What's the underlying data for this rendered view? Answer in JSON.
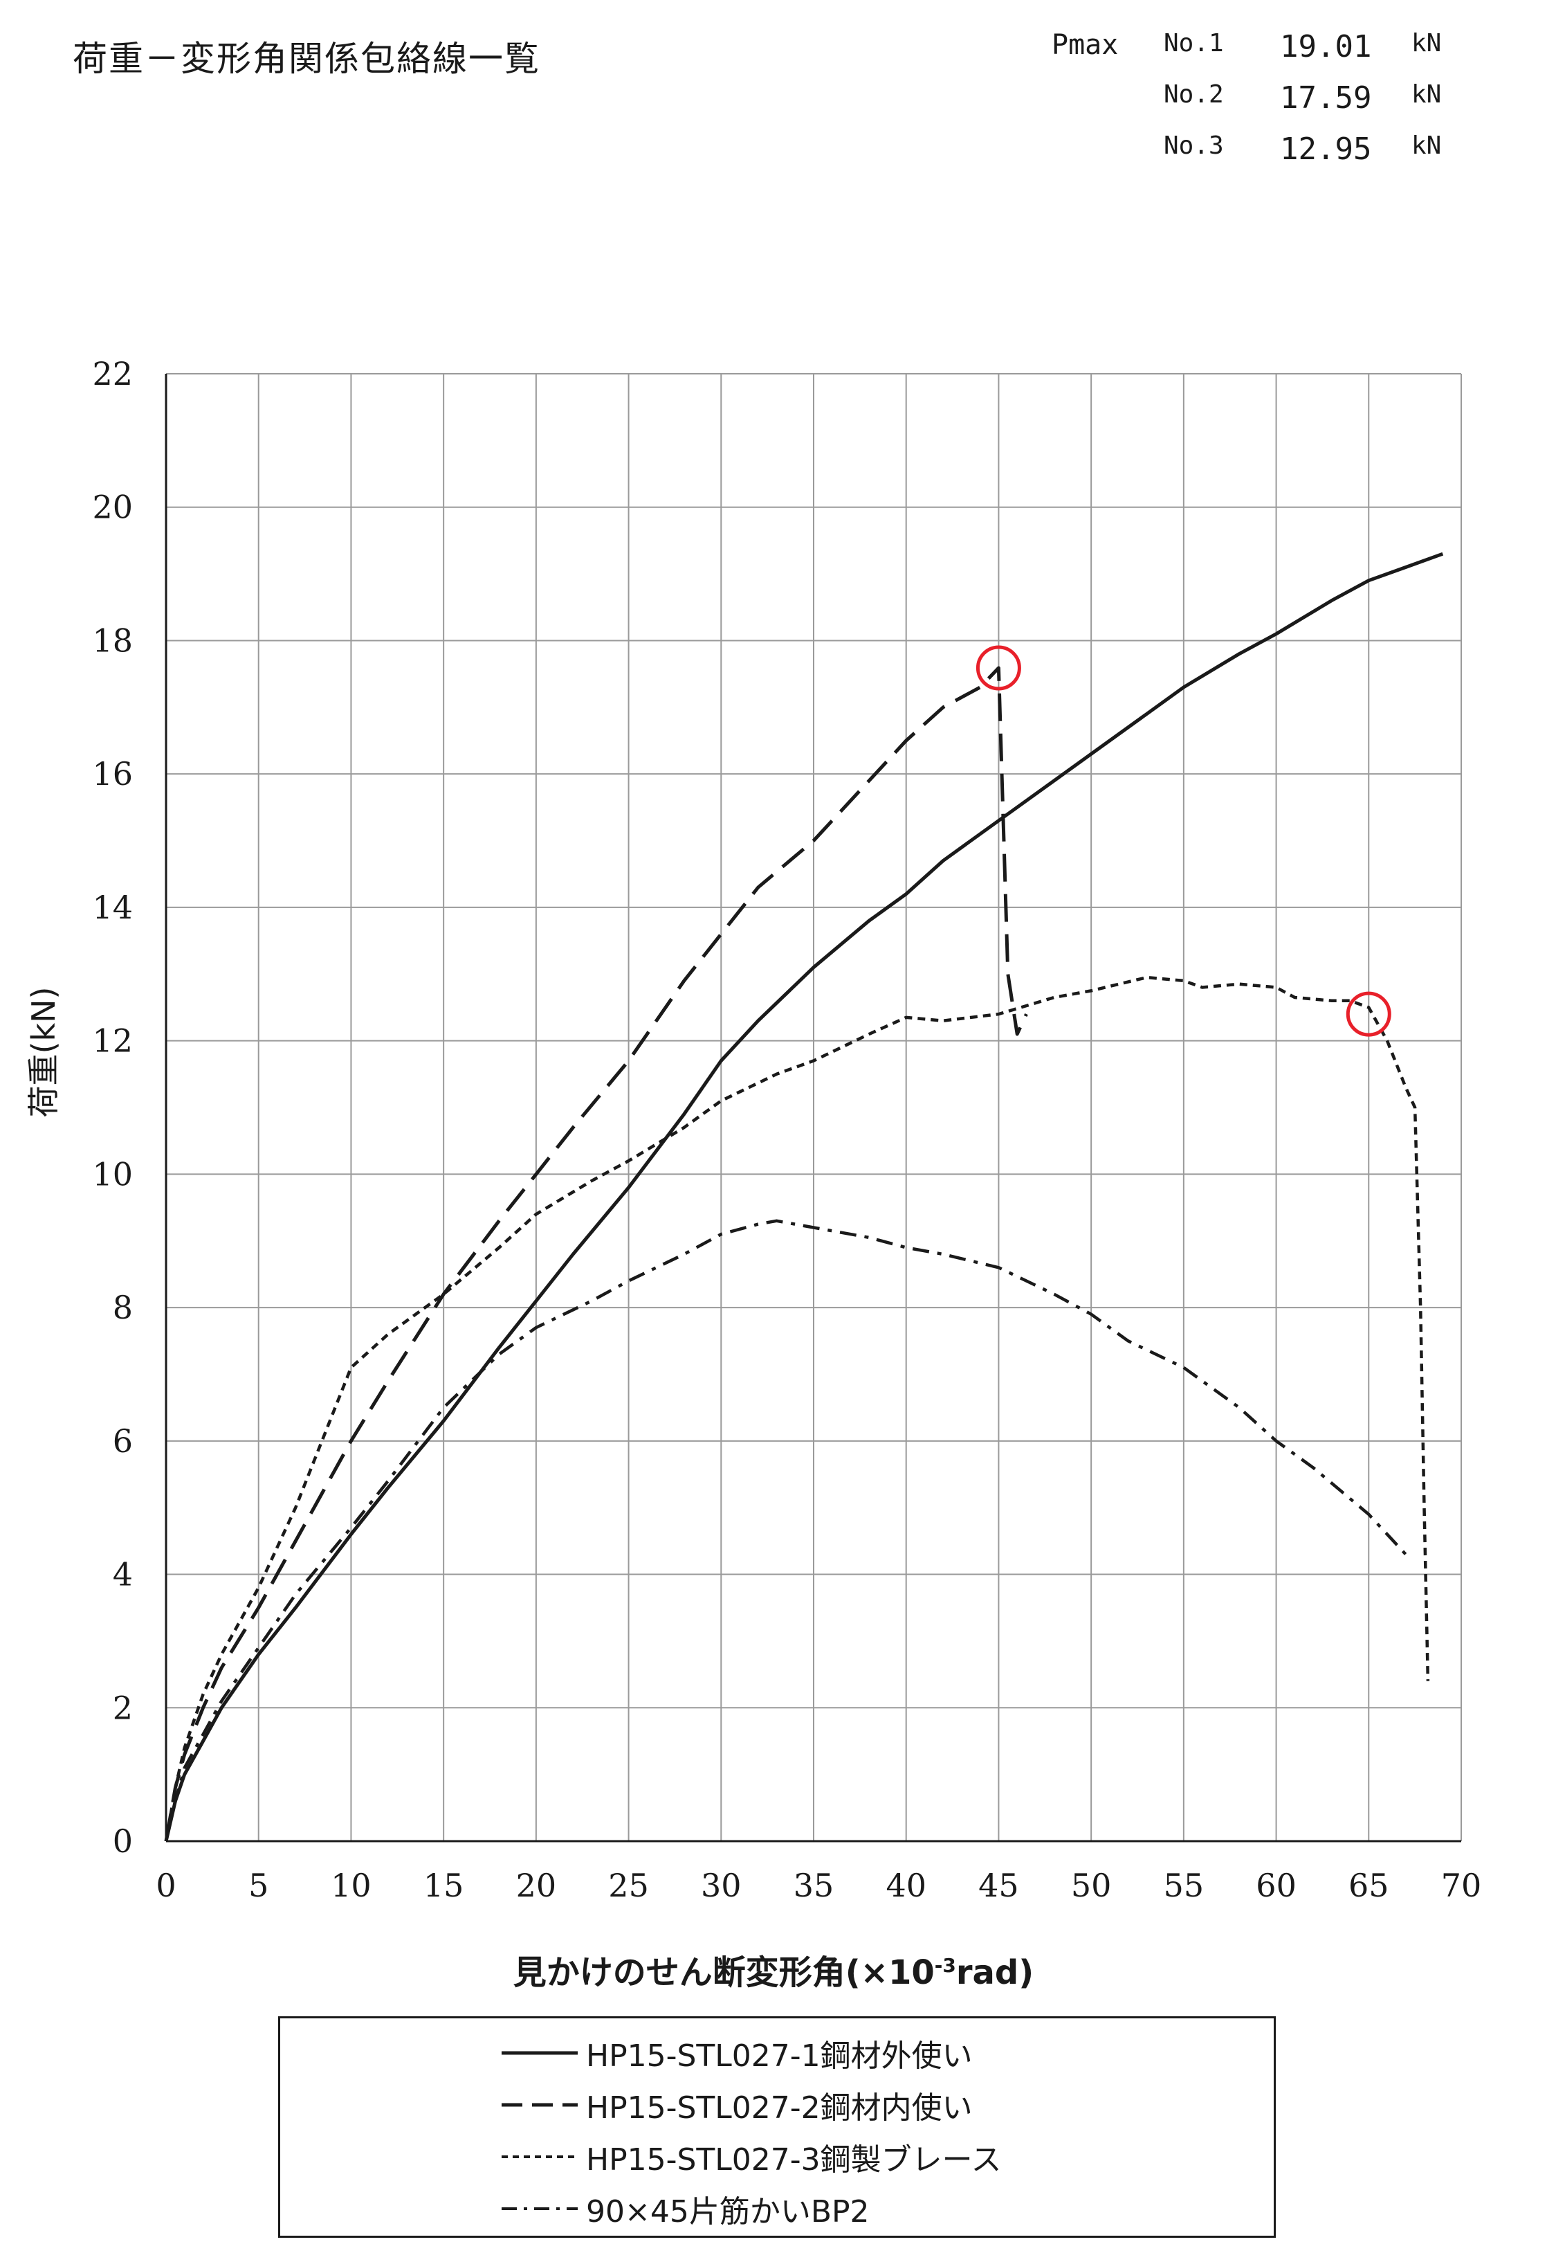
{
  "page": {
    "title": "荷重－変形角関係包絡線一覧"
  },
  "pmax": {
    "label": "Pmax",
    "rows": [
      {
        "no": "No.1",
        "value": "19.01",
        "unit": "kN"
      },
      {
        "no": "No.2",
        "value": "17.59",
        "unit": "kN"
      },
      {
        "no": "No.3",
        "value": "12.95",
        "unit": "kN"
      }
    ]
  },
  "chart_data": {
    "type": "line",
    "xlabel_main": "見かけのせん断変形角(×10",
    "xlabel_sup": "-3",
    "xlabel_tail": "rad)",
    "ylabel": "荷重(kN)",
    "xlim": [
      0,
      70
    ],
    "ylim": [
      0,
      22
    ],
    "xticks": [
      "0",
      "5",
      "10",
      "15",
      "20",
      "25",
      "30",
      "35",
      "40",
      "45",
      "50",
      "55",
      "60",
      "65",
      "70"
    ],
    "yticks": [
      "0",
      "2",
      "4",
      "6",
      "8",
      "10",
      "12",
      "14",
      "16",
      "18",
      "20",
      "22"
    ],
    "grid": true,
    "legend_position": "bottom",
    "series": [
      {
        "name": "HP15-STL027-1鋼材外使い",
        "style": "solid",
        "color": "#1a1a1a",
        "points": [
          [
            0,
            0
          ],
          [
            0.5,
            0.6
          ],
          [
            1,
            1.0
          ],
          [
            2,
            1.5
          ],
          [
            3,
            2.0
          ],
          [
            5,
            2.8
          ],
          [
            7,
            3.5
          ],
          [
            10,
            4.6
          ],
          [
            12,
            5.3
          ],
          [
            15,
            6.3
          ],
          [
            18,
            7.4
          ],
          [
            20,
            8.1
          ],
          [
            22,
            8.8
          ],
          [
            25,
            9.8
          ],
          [
            28,
            10.9
          ],
          [
            30,
            11.7
          ],
          [
            32,
            12.3
          ],
          [
            35,
            13.1
          ],
          [
            38,
            13.8
          ],
          [
            40,
            14.2
          ],
          [
            42,
            14.7
          ],
          [
            45,
            15.3
          ],
          [
            48,
            15.9
          ],
          [
            50,
            16.3
          ],
          [
            53,
            16.9
          ],
          [
            55,
            17.3
          ],
          [
            58,
            17.8
          ],
          [
            60,
            18.1
          ],
          [
            63,
            18.6
          ],
          [
            65,
            18.9
          ],
          [
            67,
            19.1
          ],
          [
            69,
            19.3
          ]
        ]
      },
      {
        "name": "HP15-STL027-2鋼材内使い",
        "style": "dashed",
        "color": "#1a1a1a",
        "points": [
          [
            0,
            0
          ],
          [
            0.5,
            0.8
          ],
          [
            1,
            1.3
          ],
          [
            2,
            2.0
          ],
          [
            3,
            2.6
          ],
          [
            5,
            3.5
          ],
          [
            7,
            4.5
          ],
          [
            10,
            6.0
          ],
          [
            12,
            6.9
          ],
          [
            15,
            8.2
          ],
          [
            18,
            9.3
          ],
          [
            20,
            10.0
          ],
          [
            22,
            10.7
          ],
          [
            25,
            11.7
          ],
          [
            28,
            12.9
          ],
          [
            30,
            13.6
          ],
          [
            32,
            14.3
          ],
          [
            35,
            15.0
          ],
          [
            38,
            15.9
          ],
          [
            40,
            16.5
          ],
          [
            42,
            17.0
          ],
          [
            44,
            17.3
          ],
          [
            45,
            17.59
          ],
          [
            45.5,
            13.0
          ],
          [
            46,
            12.1
          ],
          [
            46.5,
            12.4
          ]
        ]
      },
      {
        "name": "HP15-STL027-3鋼製ブレース",
        "style": "dotted",
        "color": "#1a1a1a",
        "points": [
          [
            0,
            0
          ],
          [
            0.5,
            0.8
          ],
          [
            1,
            1.4
          ],
          [
            2,
            2.2
          ],
          [
            3,
            2.8
          ],
          [
            5,
            3.8
          ],
          [
            7,
            5.0
          ],
          [
            8,
            5.7
          ],
          [
            10,
            7.1
          ],
          [
            12,
            7.6
          ],
          [
            15,
            8.2
          ],
          [
            18,
            8.9
          ],
          [
            20,
            9.4
          ],
          [
            23,
            9.9
          ],
          [
            25,
            10.2
          ],
          [
            28,
            10.7
          ],
          [
            30,
            11.1
          ],
          [
            33,
            11.5
          ],
          [
            35,
            11.7
          ],
          [
            38,
            12.1
          ],
          [
            40,
            12.35
          ],
          [
            42,
            12.3
          ],
          [
            45,
            12.4
          ],
          [
            48,
            12.65
          ],
          [
            50,
            12.75
          ],
          [
            53,
            12.95
          ],
          [
            55,
            12.9
          ],
          [
            56,
            12.8
          ],
          [
            58,
            12.85
          ],
          [
            60,
            12.8
          ],
          [
            61,
            12.65
          ],
          [
            63,
            12.6
          ],
          [
            64,
            12.6
          ],
          [
            65,
            12.5
          ],
          [
            66,
            12.0
          ],
          [
            67,
            11.3
          ],
          [
            67.5,
            11.0
          ],
          [
            67.8,
            8.0
          ],
          [
            68,
            5.0
          ],
          [
            68.2,
            2.4
          ]
        ]
      },
      {
        "name": "90×45片筋かいBP2",
        "style": "dashdot",
        "color": "#1a1a1a",
        "points": [
          [
            0,
            0
          ],
          [
            0.5,
            0.6
          ],
          [
            1,
            1.1
          ],
          [
            2,
            1.6
          ],
          [
            3,
            2.1
          ],
          [
            5,
            2.9
          ],
          [
            7,
            3.7
          ],
          [
            10,
            4.7
          ],
          [
            12,
            5.4
          ],
          [
            15,
            6.5
          ],
          [
            18,
            7.3
          ],
          [
            20,
            7.7
          ],
          [
            23,
            8.1
          ],
          [
            25,
            8.4
          ],
          [
            28,
            8.8
          ],
          [
            30,
            9.1
          ],
          [
            32,
            9.25
          ],
          [
            33,
            9.3
          ],
          [
            35,
            9.2
          ],
          [
            38,
            9.05
          ],
          [
            40,
            8.9
          ],
          [
            42,
            8.8
          ],
          [
            45,
            8.6
          ],
          [
            48,
            8.2
          ],
          [
            50,
            7.9
          ],
          [
            52,
            7.5
          ],
          [
            55,
            7.1
          ],
          [
            58,
            6.5
          ],
          [
            60,
            6.0
          ],
          [
            62,
            5.6
          ],
          [
            65,
            4.9
          ],
          [
            67,
            4.3
          ]
        ]
      }
    ],
    "markers": [
      {
        "x": 45,
        "y": 17.59,
        "color": "#e8202a"
      },
      {
        "x": 65,
        "y": 12.4,
        "color": "#e8202a"
      }
    ]
  }
}
